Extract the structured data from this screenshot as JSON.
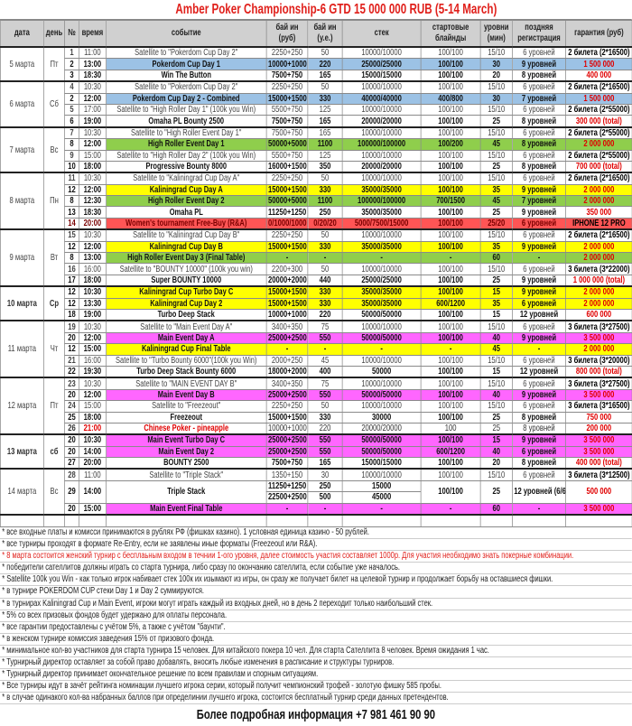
{
  "title": "Amber Poker Championship-6 GTD 15 000 000 RUB (5-14 March)",
  "headers": [
    "дата",
    "день",
    "№",
    "время",
    "событие",
    "бай ин (руб)",
    "бай ин (у.е.)",
    "стек",
    "стартовые блайнды",
    "уровни (мин)",
    "поздняя регистрация",
    "гарантия (руб)"
  ],
  "style_colors": {
    "blue": "#9cc2e5",
    "green": "#8fce4c",
    "yellow": "#ffff00",
    "pink": "#ff66ff",
    "red": "#ff5555",
    "title": "#e0201b",
    "guarantee": "#e00000"
  },
  "days": [
    {
      "date": "5 марта",
      "day": "Пт",
      "events": [
        [
          "1",
          "11:00",
          "Satellite to \"Pokerdom Cup Day 2\"",
          "2250+250",
          "50",
          "10000/10000",
          "100/100",
          "15/10",
          "6 уровней",
          "2 билета (2*16500)",
          "sat"
        ],
        [
          "2",
          "13:00",
          "Pokerdom Cup Day 1",
          "10000+1000",
          "220",
          "25000/25000",
          "100/100",
          "30",
          "9 уровней",
          "1 500 000",
          "blue"
        ],
        [
          "3",
          "18:30",
          "Win The Button",
          "7500+750",
          "165",
          "15000/15000",
          "100/100",
          "20",
          "8 уровней",
          "400 000",
          "main"
        ]
      ]
    },
    {
      "date": "6 марта",
      "day": "Сб",
      "events": [
        [
          "4",
          "10:30",
          "Satellite to \"Pokerdom Cup Day 2\"",
          "2250+250",
          "50",
          "10000/10000",
          "100/100",
          "15/10",
          "6 уровней",
          "2 билета (2*16500)",
          "sat"
        ],
        [
          "2",
          "12:00",
          "Pokerdom Cup Day 2 - Combined",
          "15000+1500",
          "330",
          "40000/40000",
          "400/800",
          "30",
          "7 уровней",
          "1 500 000",
          "blue"
        ],
        [
          "5",
          "17:00",
          "Satellite to \"High Roller Day 1\" (100k you Win)",
          "5500+750",
          "125",
          "10000/10000",
          "100/100",
          "15/10",
          "6 уровней",
          "2 билета (2*55000)",
          "sat"
        ],
        [
          "6",
          "19:00",
          "Omaha PL Bounty 2500",
          "7500+750",
          "165",
          "20000/20000",
          "100/100",
          "25",
          "8 уровней",
          "300 000 (total)",
          "main"
        ]
      ]
    },
    {
      "date": "7 марта",
      "day": "Вс",
      "events": [
        [
          "7",
          "10:30",
          "Satellite to \"High Roller Event Day 1\"",
          "7500+750",
          "165",
          "10000/10000",
          "100/100",
          "15/10",
          "6 уровней",
          "2 билета (2*55000)",
          "sat"
        ],
        [
          "8",
          "12:00",
          "High Roller Event Day 1",
          "50000+5000",
          "1100",
          "100000/100000",
          "100/200",
          "45",
          "8 уровней",
          "2 000 000",
          "green"
        ],
        [
          "9",
          "15:00",
          "Satellite to \"High Roller Day 2\" (100k you Win)",
          "5500+750",
          "125",
          "10000/10000",
          "100/100",
          "15/10",
          "6 уровней",
          "2 билета (2*55000)",
          "sat"
        ],
        [
          "10",
          "18:00",
          "Progressive Bounty 8000",
          "16000+1500",
          "350",
          "20000/20000",
          "100/100",
          "25",
          "8 уровней",
          "700 000 (total)",
          "main"
        ]
      ]
    },
    {
      "date": "8 марта",
      "day": "Пн",
      "events": [
        [
          "11",
          "10:30",
          "Satellite to \"Kaliningrad Cup Day A\"",
          "2250+250",
          "50",
          "10000/10000",
          "100/100",
          "15/10",
          "6 уровней",
          "2 билета (2*16500)",
          "sat"
        ],
        [
          "12",
          "12:00",
          "Kaliningrad Cup Day A",
          "15000+1500",
          "330",
          "35000/35000",
          "100/100",
          "35",
          "9 уровней",
          "2 000 000",
          "yellow"
        ],
        [
          "8",
          "12:30",
          "High Roller Event Day 2",
          "50000+5000",
          "1100",
          "100000/100000",
          "700/1500",
          "45",
          "7 уровней",
          "2 000 000",
          "green"
        ],
        [
          "13",
          "18:30",
          "Omaha PL",
          "11250+1250",
          "250",
          "35000/35000",
          "100/100",
          "25",
          "9 уровней",
          "350 000",
          "main"
        ],
        [
          "14",
          "20:00",
          "Women's tournament Free-Buy (R&A)",
          "0/1000/1000",
          "0/20/20",
          "5000/7500/15000",
          "100/100",
          "25/20",
          "6 уровней",
          "IPHONE 12 PRO",
          "red"
        ]
      ]
    },
    {
      "date": "9 марта",
      "day": "Вт",
      "events": [
        [
          "15",
          "10:30",
          "Satellite to \"Kaliningrad Cup Day B\"",
          "2250+250",
          "50",
          "10000/10000",
          "100/100",
          "15/10",
          "6 уровней",
          "2 билета (2*16500)",
          "sat"
        ],
        [
          "12",
          "12:00",
          "Kaliningrad Cup Day B",
          "15000+1500",
          "330",
          "35000/35000",
          "100/100",
          "35",
          "9 уровней",
          "2 000 000",
          "yellow"
        ],
        [
          "8",
          "13:00",
          "High Roller Event Day 3 (Final Table)",
          "-",
          "-",
          "-",
          "-",
          "60",
          "-",
          "2 000 000",
          "green"
        ],
        [
          "16",
          "16:00",
          "Satellite to \"BOUNTY 10000\" (100k you win)",
          "2200+300",
          "50",
          "10000/10000",
          "100/100",
          "15/10",
          "6 уровней",
          "3 билета (3*22000)",
          "sat"
        ],
        [
          "17",
          "18:00",
          "Super BOUNTY 10000",
          "20000+2000",
          "440",
          "25000/25000",
          "100/100",
          "25",
          "9 уровней",
          "1 000 000 (total)",
          "main"
        ]
      ]
    },
    {
      "date": "10 марта",
      "day": "Ср",
      "events": [
        [
          "12",
          "10:30",
          "Kaliningrad Cup Turbo Day C",
          "15000+1500",
          "330",
          "35000/35000",
          "100/100",
          "15",
          "9 уровней",
          "2 000 000",
          "yellow"
        ],
        [
          "12",
          "13:30",
          "Kaliningrad Cup Day 2",
          "15000+1500",
          "330",
          "35000/35000",
          "600/1200",
          "35",
          "6 уровней",
          "2 000 000",
          "yellow"
        ],
        [
          "18",
          "19:00",
          "Turbo Deep Stack",
          "10000+1000",
          "220",
          "50000/50000",
          "100/100",
          "15",
          "12 уровней",
          "600 000",
          "main"
        ]
      ]
    },
    {
      "date": "11 марта",
      "day": "Чт",
      "events": [
        [
          "19",
          "10:30",
          "Satellite to \"Main Event Day A\"",
          "3400+350",
          "75",
          "10000/10000",
          "100/100",
          "15/10",
          "6 уровней",
          "3 билета (3*27500)",
          "sat"
        ],
        [
          "20",
          "12:00",
          "Main Event Day A",
          "25000+2500",
          "550",
          "50000/50000",
          "100/100",
          "40",
          "9 уровней",
          "3 500 000",
          "pink"
        ],
        [
          "12",
          "15:00",
          "Kaliningrad Cup Final Table",
          "-",
          "-",
          "-",
          "-",
          "45",
          "-",
          "2 000 000",
          "yellow"
        ],
        [
          "21",
          "16:00",
          "Satellite to \"Turbo Bounty 6000\"(100k you Win)",
          "2000+250",
          "45",
          "10000/10000",
          "100/100",
          "15/10",
          "6 уровней",
          "3 билета (3*20000)",
          "sat"
        ],
        [
          "22",
          "19:30",
          "Turbo Deep Stack Bounty 6000",
          "18000+2000",
          "400",
          "50000",
          "100/100",
          "15",
          "12 уровней",
          "800 000 (total)",
          "main"
        ]
      ]
    },
    {
      "date": "12 марта",
      "day": "Пт",
      "events": [
        [
          "23",
          "10:30",
          "Satellite to \"MAIN EVENT DAY B\"",
          "3400+350",
          "75",
          "10000/10000",
          "100/100",
          "15/10",
          "6 уровней",
          "3 билета (3*27500)",
          "sat"
        ],
        [
          "20",
          "12:00",
          "Main Event Day B",
          "25000+2500",
          "550",
          "50000/50000",
          "100/100",
          "40",
          "9 уровней",
          "3 500 000",
          "pink"
        ],
        [
          "24",
          "15:00",
          "Satellite to \"Freezeout\"",
          "2250+250",
          "50",
          "10000/10000",
          "100/100",
          "15/10",
          "6 уровней",
          "3 билета (3*16500)",
          "sat"
        ],
        [
          "25",
          "18:00",
          "Freezeout",
          "15000+1500",
          "330",
          "30000",
          "100/100",
          "25",
          "8 уровней",
          "750 000",
          "main"
        ],
        [
          "26",
          "21:00",
          "Chinese Poker - pineapple",
          "10000+1000",
          "220",
          "20000/20000",
          "100",
          "25",
          "8 уровней",
          "200 000",
          "chinese"
        ]
      ]
    },
    {
      "date": "13 марта",
      "day": "сб",
      "events": [
        [
          "20",
          "10:30",
          "Main Event Turbo Day C",
          "25000+2500",
          "550",
          "50000/50000",
          "100/100",
          "15",
          "9 уровней",
          "3 500 000",
          "pink"
        ],
        [
          "20",
          "14:00",
          "Main Event Day 2",
          "25000+2500",
          "550",
          "50000/50000",
          "600/1200",
          "40",
          "6 уровней",
          "3 500 000",
          "pink"
        ],
        [
          "27",
          "20:00",
          "BOUNTY 2500",
          "7500+750",
          "165",
          "15000/15000",
          "100/100",
          "20",
          "8 уровней",
          "400 000 (total)",
          "main"
        ]
      ]
    },
    {
      "date": "14 марта",
      "day": "Вс",
      "events": [
        [
          "28",
          "11:00",
          "Satellite to \"Triple Stack\"",
          "1350+150",
          "30",
          "10000/10000",
          "100/100",
          "15/10",
          "6 уровней",
          "3 билета (3*12500)",
          "sat"
        ],
        [
          "29",
          "14:00",
          "Triple Stack",
          [
            "11250+1250",
            "22500+2500"
          ],
          [
            "250",
            "500"
          ],
          [
            "15000",
            "45000"
          ],
          "100/100",
          "25",
          "12 уровней (6/6)",
          "500 000",
          "main"
        ],
        [
          "20",
          "15:00",
          "Main Event Final Table",
          "-",
          "-",
          "-",
          "-",
          "60",
          "-",
          "3 500 000",
          "pink"
        ]
      ]
    }
  ],
  "notes": [
    "* все входные платы и комисси принимаются в рублях РФ (фишках казино). 1 условная единица казино - 50 рублей.",
    "* все турниры проходят в формате Re-Entry, если не заявлены иные форматы (Freezeout или R&A).",
    "* 8 марта состоится женский турнир с бесплаьным входом в течнии 1-ого уровня, далее стоимость участия составляет 1000р. Для участия необходимо знать покерные комбинации.",
    "* победители сателлитов должны играть со старта турнира, либо сразу по окончанию сателлита, если событие уже началось.",
    "* Satellite 100k you Win - как только игрок набивает стек 100к их изымают из игры, он сразу же получает билет на целевой турнир и продолжает борьбу на оставшиеся фишки.",
    "* в турнире POKERDOM CUP стеки Day 1 и Day 2 суммируются.",
    "* в турнирах Kaliningrad Cup и Main Event, игроки могут играть каждый из входных дней, но в день 2 переходит только наибольший стек.",
    "* 5% со всех призовых фондов будет удержано для оплаты персонала.",
    "* все гарантии предоставлены с учётом 5%, а также с учётом \"баунти\".",
    "* в женском турнире комиссия заведения 15% от призового фонда.",
    "* минимальное кол-во участников для старта турнира 15 человек. Для китайского покера 10 чел. Для старта Сателлита 8 человек. Время ожидания 1 час.",
    "* Турнирный директор оставляет за собой право добавлять, вносить любые изменения в расписание и структуры турниров.",
    "* Турнирный директор принимает окончательное решение по всем правилам и спорным ситуациям.",
    "* Все турниры идут в зачёт рейтинга номинации лучшего игрока серии, который получит чемпионский трофей - золотую фишку 585 пробы.",
    "* в случае одинакого кол-ва набранных баллов при определинии лучшего игрока, состоится бесплатный турнир среди данных претендентов."
  ],
  "footer": "Более подробная информация +7 981 461 90 90"
}
